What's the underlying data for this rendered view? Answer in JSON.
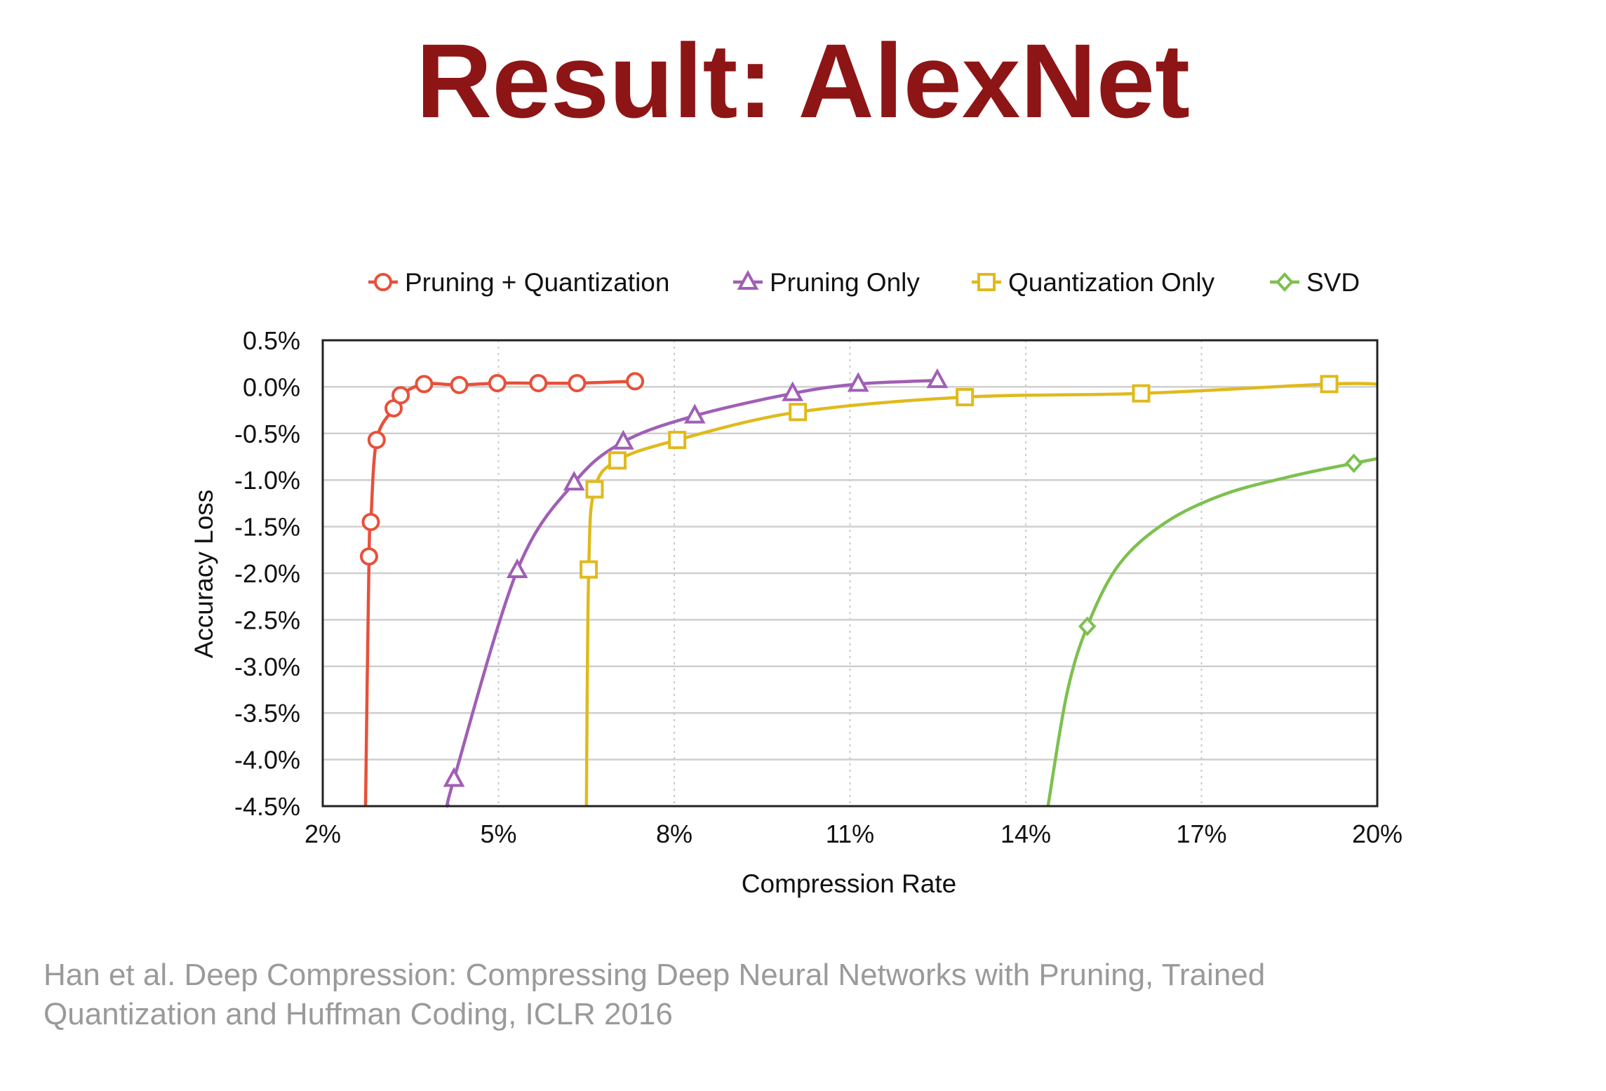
{
  "slide": {
    "title": "Result: AlexNet"
  },
  "citation": {
    "line1": "Han et al. Deep Compression: Compressing Deep Neural Networks with Pruning, Trained",
    "line2": "Quantization and Huffman Coding, ICLR 2016"
  },
  "chart_data": {
    "type": "line",
    "title": "",
    "xlabel": "Compression Rate",
    "ylabel": "Accuracy Loss",
    "xlim": [
      2,
      20
    ],
    "ylim": [
      -4.5,
      0.5
    ],
    "x_ticks": [
      2,
      5,
      8,
      11,
      14,
      17,
      20
    ],
    "x_tick_labels": [
      "2%",
      "5%",
      "8%",
      "11%",
      "14%",
      "17%",
      "20%"
    ],
    "y_ticks": [
      0.5,
      0.0,
      -0.5,
      -1.0,
      -1.5,
      -2.0,
      -2.5,
      -3.0,
      -3.5,
      -4.0,
      -4.5
    ],
    "y_tick_labels": [
      "0.5%",
      "0.0%",
      "-0.5%",
      "-1.0%",
      "-1.5%",
      "-2.0%",
      "-2.5%",
      "-3.0%",
      "-3.5%",
      "-4.0%",
      "-4.5%"
    ],
    "grid": "horizontal-solid, vertical-dotted",
    "legend": "top",
    "series": [
      {
        "name": "Pruning + Quantization",
        "color": "#e8503a",
        "marker": "circle",
        "points": [
          [
            2.79,
            -1.82
          ],
          [
            2.82,
            -1.45
          ],
          [
            2.92,
            -0.57
          ],
          [
            3.21,
            -0.23
          ],
          [
            3.33,
            -0.09
          ],
          [
            3.73,
            0.03
          ],
          [
            4.33,
            0.02
          ],
          [
            4.98,
            0.04
          ],
          [
            5.68,
            0.04
          ],
          [
            6.34,
            0.04
          ],
          [
            7.33,
            0.06
          ]
        ],
        "curve_points": [
          [
            2.73,
            -4.5
          ],
          [
            2.79,
            -1.82
          ],
          [
            2.82,
            -1.45
          ],
          [
            2.92,
            -0.57
          ],
          [
            3.21,
            -0.23
          ],
          [
            3.33,
            -0.09
          ],
          [
            3.73,
            0.03
          ],
          [
            4.33,
            0.02
          ],
          [
            4.98,
            0.04
          ],
          [
            5.68,
            0.04
          ],
          [
            6.34,
            0.04
          ],
          [
            7.33,
            0.06
          ]
        ]
      },
      {
        "name": "Pruning Only",
        "color": "#a05fb5",
        "marker": "triangle",
        "points": [
          [
            4.24,
            -4.21
          ],
          [
            5.32,
            -1.97
          ],
          [
            6.29,
            -1.03
          ],
          [
            7.13,
            -0.59
          ],
          [
            8.35,
            -0.31
          ],
          [
            10.02,
            -0.07
          ],
          [
            11.14,
            0.03
          ],
          [
            12.49,
            0.07
          ]
        ],
        "curve_points": [
          [
            4.14,
            -4.5
          ],
          [
            4.24,
            -4.21
          ],
          [
            5.32,
            -1.97
          ],
          [
            6.29,
            -1.03
          ],
          [
            7.13,
            -0.59
          ],
          [
            8.35,
            -0.31
          ],
          [
            10.02,
            -0.07
          ],
          [
            11.14,
            0.03
          ],
          [
            12.49,
            0.07
          ]
        ]
      },
      {
        "name": "Quantization Only",
        "color": "#e0ba1c",
        "marker": "square",
        "points": [
          [
            6.54,
            -1.96
          ],
          [
            6.64,
            -1.1
          ],
          [
            7.03,
            -0.79
          ],
          [
            8.05,
            -0.57
          ],
          [
            10.11,
            -0.27
          ],
          [
            12.96,
            -0.11
          ],
          [
            15.97,
            -0.07
          ],
          [
            19.18,
            0.03
          ]
        ],
        "curve_points": [
          [
            6.5,
            -4.5
          ],
          [
            6.54,
            -1.96
          ],
          [
            6.64,
            -1.1
          ],
          [
            7.03,
            -0.79
          ],
          [
            8.05,
            -0.57
          ],
          [
            10.11,
            -0.27
          ],
          [
            12.96,
            -0.11
          ],
          [
            15.97,
            -0.07
          ],
          [
            19.18,
            0.03
          ],
          [
            20.0,
            0.03
          ]
        ]
      },
      {
        "name": "SVD",
        "color": "#7dc04f",
        "marker": "diamond",
        "points": [
          [
            15.05,
            -2.57
          ],
          [
            19.6,
            -0.82
          ]
        ],
        "curve_points": [
          [
            14.38,
            -4.5
          ],
          [
            14.7,
            -3.3
          ],
          [
            15.05,
            -2.57
          ],
          [
            15.6,
            -1.9
          ],
          [
            16.4,
            -1.45
          ],
          [
            17.4,
            -1.15
          ],
          [
            18.6,
            -0.95
          ],
          [
            19.6,
            -0.82
          ],
          [
            20.0,
            -0.77
          ]
        ]
      }
    ]
  }
}
